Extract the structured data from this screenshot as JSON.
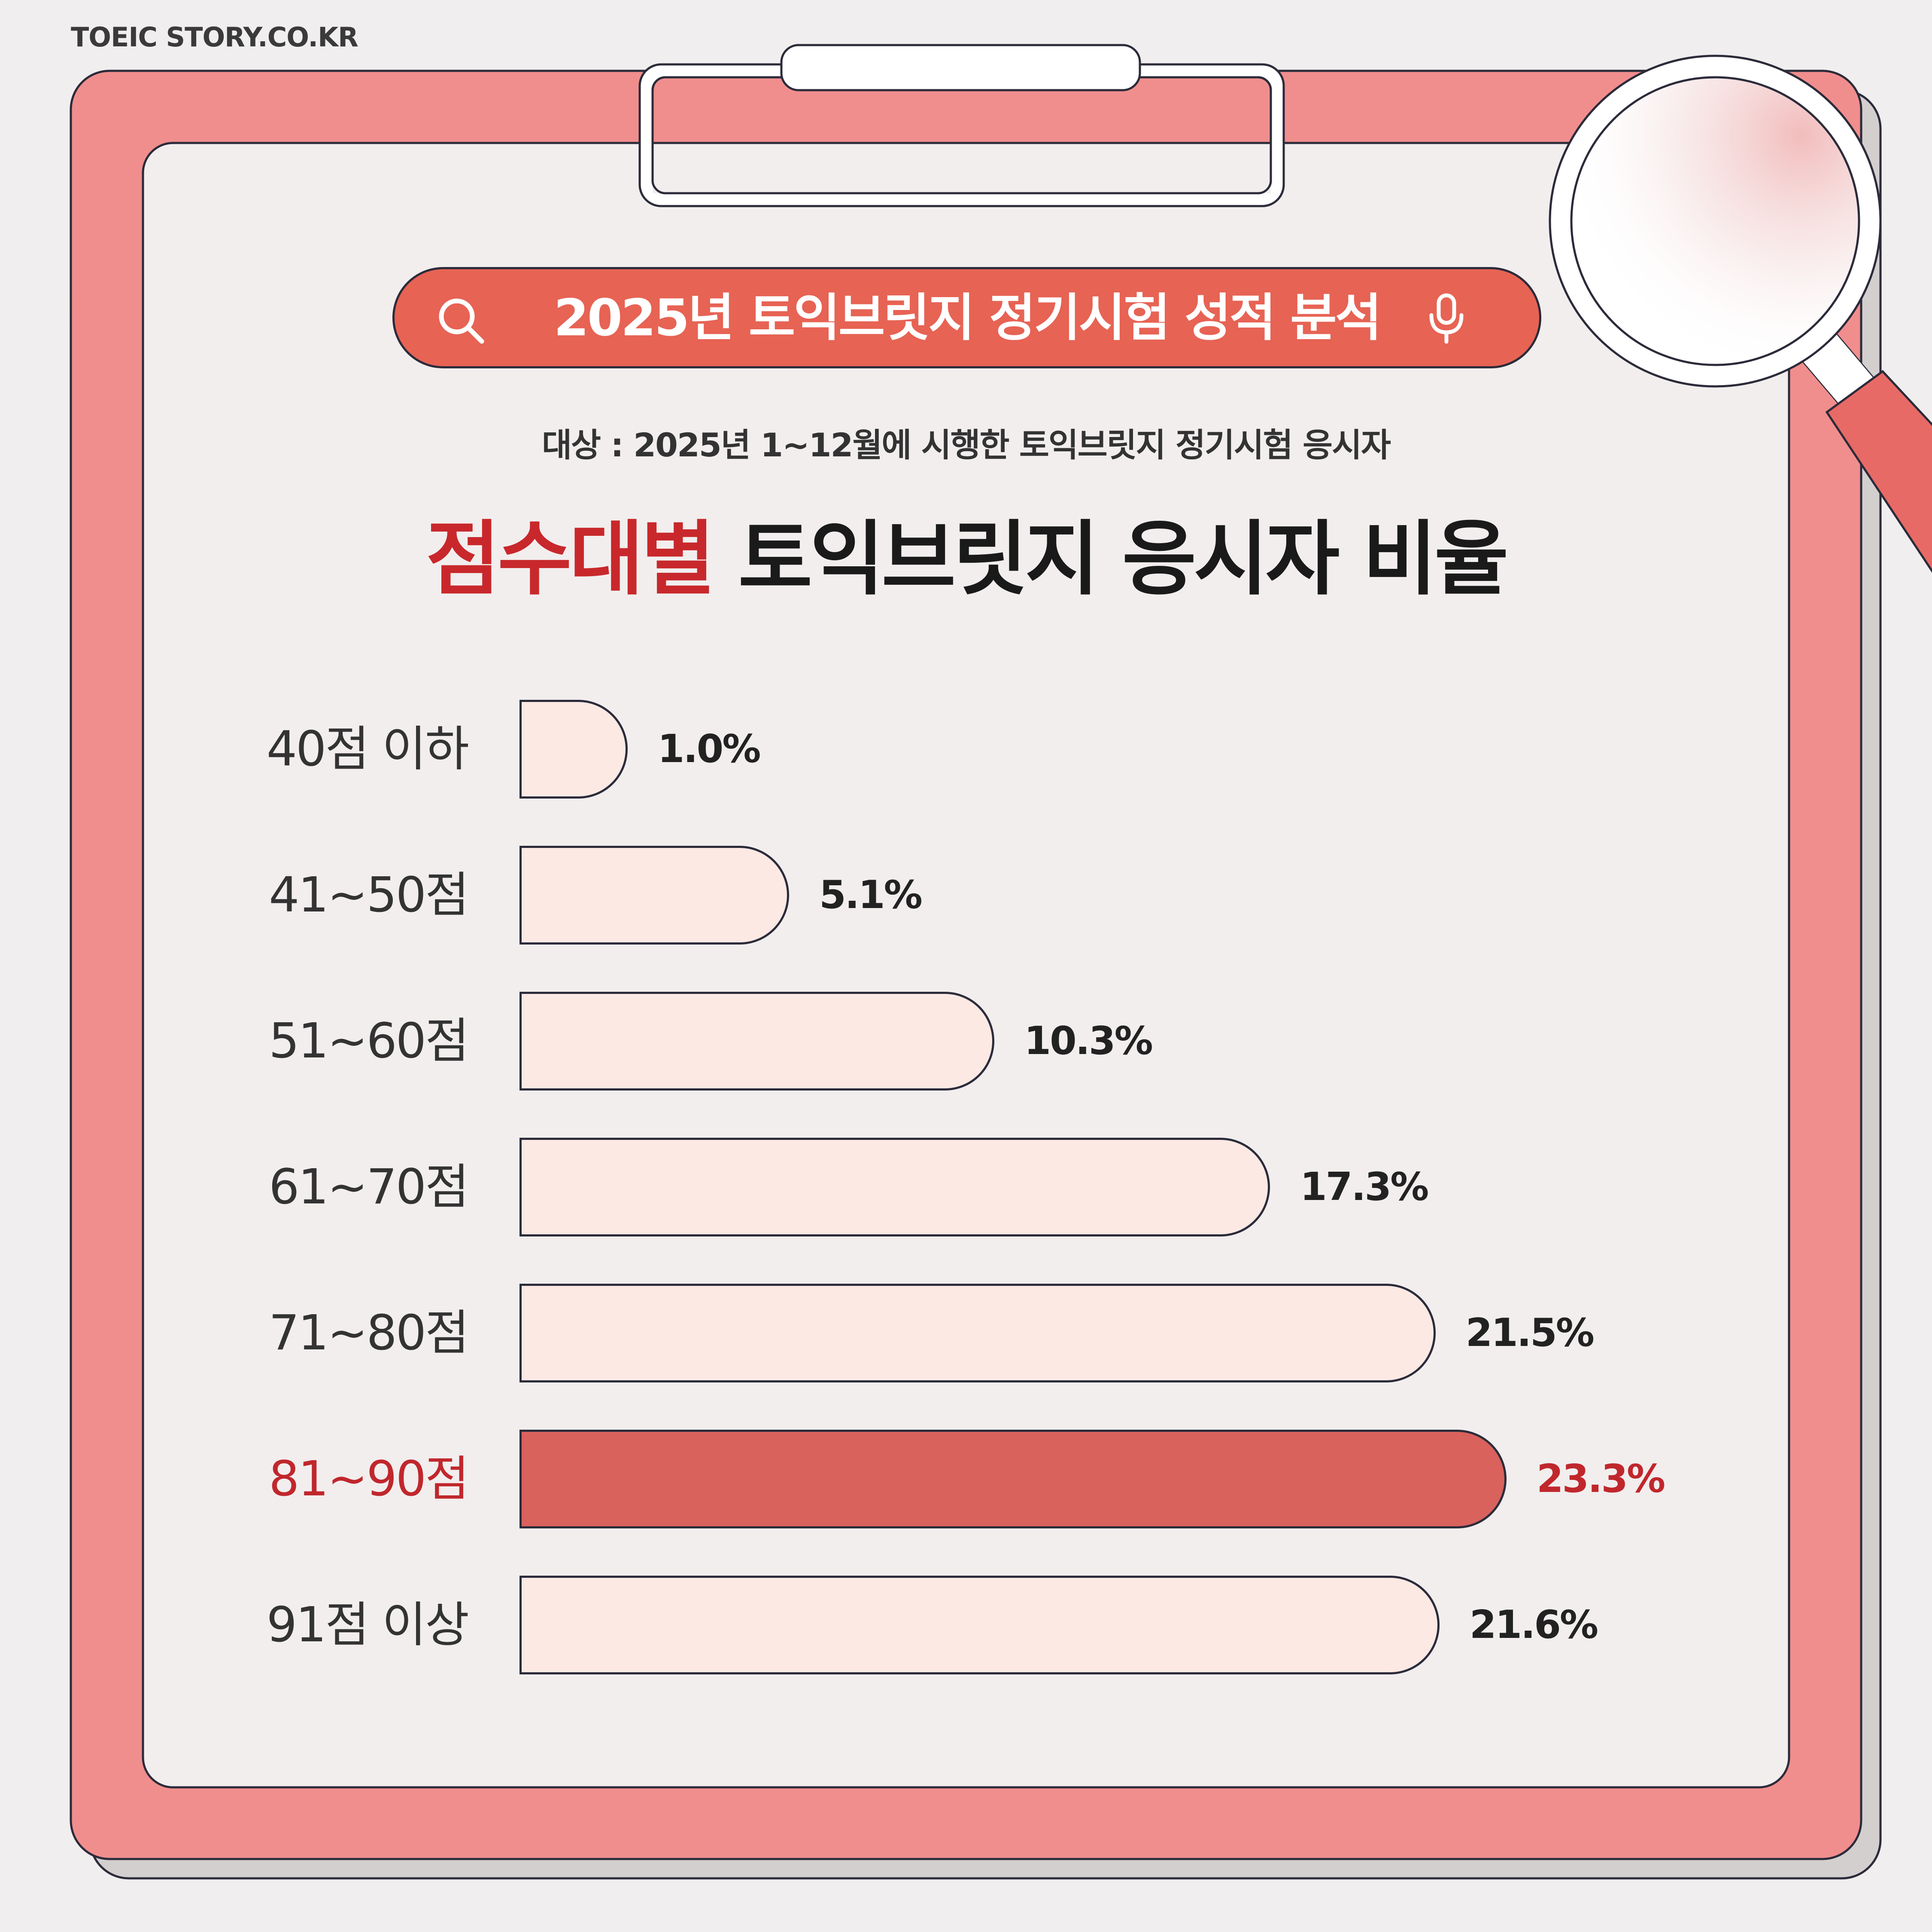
{
  "site_label": "TOEIC STORY.CO.KR",
  "search_bar": {
    "text": "2025년 토익브릿지 정기시험 성적 분석"
  },
  "subtitle": "대상 : 2025년 1~12월에 시행한 토익브릿지 정기시험 응시자",
  "title": {
    "highlight": "점수대별",
    "rest": " 토익브릿지 응시자 비율"
  },
  "icons": {
    "search": "search-icon",
    "mic": "mic-icon",
    "magnifier": "magnifier-icon",
    "clip": "clipboard-clip"
  },
  "colors": {
    "board": "#f08e8d",
    "paper": "#f2eeee",
    "bar": "#fde9e4",
    "bar_highlight": "#d9625c",
    "title_highlight": "#c8282b",
    "search_bar": "#e76354"
  },
  "chart_data": {
    "type": "bar",
    "orientation": "horizontal",
    "title": "점수대별 토익브릿지 응시자 비율",
    "categories": [
      "40점 이하",
      "41~50점",
      "51~60점",
      "61~70점",
      "71~80점",
      "81~90점",
      "91점 이상"
    ],
    "values": [
      1.0,
      5.1,
      10.3,
      17.3,
      21.5,
      23.3,
      21.6
    ],
    "value_labels": [
      "1.0%",
      "5.1%",
      "10.3%",
      "17.3%",
      "21.5%",
      "23.3%",
      "21.6%"
    ],
    "highlight_index": 5,
    "unit": "%",
    "grid": false,
    "legend": "none"
  }
}
